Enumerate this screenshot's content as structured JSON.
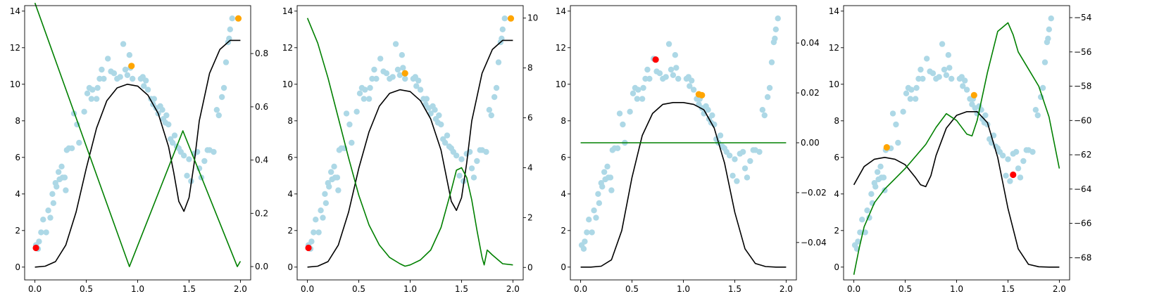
{
  "figure": {
    "background": "#ffffff",
    "colors": {
      "scatter": "#add8e6",
      "curve": "#000000",
      "right": "#008000",
      "orange": "#ffa500",
      "red": "#ff0000"
    }
  },
  "chart_data": [
    {
      "type": "scatter",
      "panel": 1,
      "xlim": [
        -0.1,
        2.1
      ],
      "ylim": [
        -0.7,
        14.3
      ],
      "xticks": [
        0.0,
        0.5,
        1.0,
        1.5,
        2.0
      ],
      "xtick_labels": [
        "0.0",
        "0.5",
        "1.0",
        "1.5",
        "2.0"
      ],
      "yticks": [
        0,
        2,
        4,
        6,
        8,
        10,
        12,
        14
      ],
      "ytick_labels": [
        "0",
        "2",
        "4",
        "6",
        "8",
        "10",
        "12",
        "14"
      ],
      "y2lim": [
        -0.05,
        0.98
      ],
      "y2ticks": [
        0.0,
        0.2,
        0.4,
        0.6,
        0.8
      ],
      "y2tick_labels": [
        "0.0",
        "0.2",
        "0.4",
        "0.6",
        "0.8"
      ],
      "curve": {
        "x": [
          0.0,
          0.1,
          0.2,
          0.3,
          0.4,
          0.5,
          0.6,
          0.7,
          0.8,
          0.9,
          1.0,
          1.1,
          1.2,
          1.3,
          1.35,
          1.4,
          1.45,
          1.5,
          1.55,
          1.6,
          1.7,
          1.8,
          1.9,
          2.0
        ],
        "y": [
          0.0,
          0.05,
          0.3,
          1.2,
          3.0,
          5.4,
          7.6,
          9.1,
          9.8,
          10.0,
          9.9,
          9.4,
          8.4,
          6.6,
          5.2,
          3.6,
          3.05,
          3.8,
          5.7,
          8.0,
          10.6,
          11.9,
          12.4,
          12.4
        ]
      },
      "right_series": {
        "x": [
          0.0,
          0.92,
          1.44,
          1.97,
          2.0
        ],
        "y": [
          0.99,
          0.0,
          0.51,
          0.0,
          0.02
        ]
      },
      "highlight_orange": [
        {
          "x": 0.94,
          "y": 11.0
        },
        {
          "x": 1.98,
          "y": 13.6
        }
      ],
      "highlight_red": [
        {
          "x": 0.01,
          "y": 1.05
        }
      ]
    },
    {
      "type": "scatter",
      "panel": 2,
      "xlim": [
        -0.1,
        2.1
      ],
      "ylim": [
        -0.7,
        14.3
      ],
      "xticks": [
        0.0,
        0.5,
        1.0,
        1.5,
        2.0
      ],
      "xtick_labels": [
        "0.0",
        "0.5",
        "1.0",
        "1.5",
        "2.0"
      ],
      "yticks": [
        0,
        2,
        4,
        6,
        8,
        10,
        12,
        14
      ],
      "ytick_labels": [
        "0",
        "2",
        "4",
        "6",
        "8",
        "10",
        "12",
        "14"
      ],
      "y2lim": [
        -0.5,
        10.5
      ],
      "y2ticks": [
        0,
        2,
        4,
        6,
        8,
        10
      ],
      "y2tick_labels": [
        "0",
        "2",
        "4",
        "6",
        "8",
        "10"
      ],
      "curve": {
        "x": [
          0.0,
          0.1,
          0.2,
          0.3,
          0.4,
          0.5,
          0.6,
          0.7,
          0.8,
          0.9,
          1.0,
          1.1,
          1.2,
          1.3,
          1.35,
          1.4,
          1.45,
          1.5,
          1.55,
          1.6,
          1.7,
          1.8,
          1.9,
          2.0
        ],
        "y": [
          0.0,
          0.05,
          0.3,
          1.2,
          3.0,
          5.4,
          7.4,
          8.8,
          9.5,
          9.7,
          9.6,
          9.1,
          8.1,
          6.4,
          5.0,
          3.6,
          3.1,
          3.8,
          5.7,
          8.0,
          10.6,
          11.9,
          12.4,
          12.4
        ]
      },
      "right_series": {
        "x": [
          0.0,
          0.1,
          0.2,
          0.3,
          0.4,
          0.5,
          0.6,
          0.7,
          0.8,
          0.9,
          0.95,
          1.0,
          1.1,
          1.2,
          1.3,
          1.4,
          1.45,
          1.5,
          1.55,
          1.6,
          1.65,
          1.7,
          1.72,
          1.75,
          1.8,
          1.9,
          2.0
        ],
        "y": [
          10.0,
          9.0,
          7.6,
          6.0,
          4.4,
          2.9,
          1.7,
          0.9,
          0.4,
          0.15,
          0.05,
          0.1,
          0.3,
          0.7,
          1.6,
          3.1,
          3.9,
          4.0,
          3.6,
          2.7,
          1.5,
          0.4,
          0.1,
          0.7,
          0.5,
          0.15,
          0.1
        ]
      },
      "highlight_orange": [
        {
          "x": 0.95,
          "y": 10.6
        },
        {
          "x": 1.98,
          "y": 13.6
        }
      ],
      "highlight_red": [
        {
          "x": 0.01,
          "y": 1.05
        }
      ]
    },
    {
      "type": "scatter",
      "panel": 3,
      "xlim": [
        -0.1,
        2.1
      ],
      "ylim": [
        -0.7,
        14.3
      ],
      "xticks": [
        0.0,
        0.5,
        1.0,
        1.5,
        2.0
      ],
      "xtick_labels": [
        "0.0",
        "0.5",
        "1.0",
        "1.5",
        "2.0"
      ],
      "yticks": [
        0,
        2,
        4,
        6,
        8,
        10,
        12,
        14
      ],
      "ytick_labels": [
        "0",
        "2",
        "4",
        "6",
        "8",
        "10",
        "12",
        "14"
      ],
      "y2lim": [
        -0.055,
        0.055
      ],
      "y2ticks": [
        -0.04,
        -0.02,
        0.0,
        0.02,
        0.04
      ],
      "y2tick_labels": [
        "−0.04",
        "−0.02",
        "0.00",
        "0.02",
        "0.04"
      ],
      "curve": {
        "x": [
          0.0,
          0.1,
          0.2,
          0.3,
          0.4,
          0.5,
          0.6,
          0.7,
          0.8,
          0.9,
          1.0,
          1.1,
          1.2,
          1.3,
          1.4,
          1.5,
          1.6,
          1.7,
          1.8,
          1.9,
          2.0
        ],
        "y": [
          0.0,
          0.0,
          0.05,
          0.4,
          2.0,
          4.9,
          7.2,
          8.4,
          8.9,
          9.0,
          9.0,
          8.9,
          8.6,
          7.6,
          5.7,
          3.0,
          1.0,
          0.2,
          0.03,
          0.0,
          0.0
        ]
      },
      "right_series": {
        "x": [
          0.0,
          2.0
        ],
        "y": [
          0.0,
          0.0
        ]
      },
      "highlight_orange": [
        {
          "x": 1.15,
          "y": 9.45
        },
        {
          "x": 1.18,
          "y": 9.4
        }
      ],
      "highlight_red": [
        {
          "x": 0.73,
          "y": 11.35
        }
      ]
    },
    {
      "type": "scatter",
      "panel": 4,
      "xlim": [
        -0.1,
        2.1
      ],
      "ylim": [
        -0.7,
        14.3
      ],
      "xticks": [
        0.0,
        0.5,
        1.0,
        1.5,
        2.0
      ],
      "xtick_labels": [
        "0.0",
        "0.5",
        "1.0",
        "1.5",
        "2.0"
      ],
      "yticks": [
        0,
        2,
        4,
        6,
        8,
        10,
        12,
        14
      ],
      "ytick_labels": [
        "0",
        "2",
        "4",
        "6",
        "8",
        "10",
        "12",
        "14"
      ],
      "y2lim": [
        -69.3,
        -53.3
      ],
      "y2ticks": [
        -68,
        -66,
        -64,
        -62,
        -60,
        -58,
        -56,
        -54
      ],
      "y2tick_labels": [
        "−68",
        "−66",
        "−64",
        "−62",
        "−60",
        "−58",
        "−56",
        "−54"
      ],
      "curve": {
        "x": [
          0.0,
          0.1,
          0.2,
          0.3,
          0.4,
          0.5,
          0.6,
          0.65,
          0.7,
          0.75,
          0.8,
          0.9,
          1.0,
          1.1,
          1.2,
          1.3,
          1.4,
          1.5,
          1.6,
          1.7,
          1.8,
          1.9,
          2.0
        ],
        "y": [
          4.5,
          5.5,
          5.9,
          6.0,
          5.9,
          5.6,
          4.9,
          4.5,
          4.4,
          5.0,
          6.1,
          7.6,
          8.3,
          8.5,
          8.5,
          7.9,
          6.0,
          3.2,
          1.0,
          0.15,
          0.02,
          0.0,
          0.0
        ]
      },
      "right_series": {
        "x": [
          0.0,
          0.05,
          0.1,
          0.2,
          0.3,
          0.4,
          0.5,
          0.6,
          0.7,
          0.8,
          0.9,
          1.0,
          1.1,
          1.15,
          1.2,
          1.3,
          1.4,
          1.5,
          1.55,
          1.6,
          1.7,
          1.8,
          1.9,
          2.0
        ],
        "y": [
          -69.0,
          -67.5,
          -66.2,
          -64.8,
          -64.0,
          -63.4,
          -62.8,
          -62.1,
          -61.4,
          -60.4,
          -59.6,
          -60.0,
          -60.8,
          -60.9,
          -60.0,
          -57.2,
          -54.8,
          -54.3,
          -55.0,
          -56.0,
          -57.0,
          -58.0,
          -59.8,
          -62.8
        ]
      },
      "highlight_orange": [
        {
          "x": 0.32,
          "y": 6.55
        },
        {
          "x": 1.17,
          "y": 9.4
        }
      ],
      "highlight_red": [
        {
          "x": 1.55,
          "y": 5.05
        }
      ]
    }
  ],
  "scatter_points": [
    [
      0.01,
      1.2
    ],
    [
      0.03,
      1.0
    ],
    [
      0.04,
      1.4
    ],
    [
      0.06,
      1.9
    ],
    [
      0.08,
      2.6
    ],
    [
      0.11,
      1.9
    ],
    [
      0.13,
      3.1
    ],
    [
      0.15,
      2.7
    ],
    [
      0.17,
      4.0
    ],
    [
      0.18,
      3.5
    ],
    [
      0.2,
      4.6
    ],
    [
      0.21,
      4.4
    ],
    [
      0.23,
      5.2
    ],
    [
      0.24,
      4.8
    ],
    [
      0.26,
      5.5
    ],
    [
      0.27,
      4.9
    ],
    [
      0.29,
      4.9
    ],
    [
      0.3,
      4.2
    ],
    [
      0.31,
      6.4
    ],
    [
      0.33,
      6.5
    ],
    [
      0.36,
      6.5
    ],
    [
      0.38,
      8.4
    ],
    [
      0.41,
      7.8
    ],
    [
      0.43,
      6.8
    ],
    [
      0.48,
      8.5
    ],
    [
      0.51,
      9.5
    ],
    [
      0.53,
      9.8
    ],
    [
      0.55,
      9.2
    ],
    [
      0.56,
      9.7
    ],
    [
      0.6,
      9.2
    ],
    [
      0.61,
      9.8
    ],
    [
      0.63,
      10.3
    ],
    [
      0.65,
      10.8
    ],
    [
      0.67,
      10.3
    ],
    [
      0.71,
      11.4
    ],
    [
      0.74,
      10.7
    ],
    [
      0.77,
      10.6
    ],
    [
      0.8,
      10.3
    ],
    [
      0.83,
      10.4
    ],
    [
      0.86,
      12.2
    ],
    [
      0.88,
      10.8
    ],
    [
      0.9,
      10.5
    ],
    [
      0.92,
      11.6
    ],
    [
      0.93,
      10.9
    ],
    [
      0.95,
      10.3
    ],
    [
      1.03,
      10.3
    ],
    [
      1.05,
      10.4
    ],
    [
      1.06,
      9.9
    ],
    [
      1.08,
      10.2
    ],
    [
      1.1,
      9.7
    ],
    [
      1.13,
      9.2
    ],
    [
      1.15,
      8.9
    ],
    [
      1.16,
      9.2
    ],
    [
      1.18,
      8.7
    ],
    [
      1.2,
      8.4
    ],
    [
      1.22,
      8.8
    ],
    [
      1.24,
      8.6
    ],
    [
      1.25,
      8.1
    ],
    [
      1.27,
      7.9
    ],
    [
      1.28,
      8.3
    ],
    [
      1.3,
      7.8
    ],
    [
      1.32,
      7.0
    ],
    [
      1.34,
      6.8
    ],
    [
      1.36,
      7.2
    ],
    [
      1.38,
      6.6
    ],
    [
      1.4,
      6.5
    ],
    [
      1.42,
      6.3
    ],
    [
      1.45,
      6.1
    ],
    [
      1.48,
      5.0
    ],
    [
      1.5,
      5.9
    ],
    [
      1.52,
      4.7
    ],
    [
      1.55,
      6.2
    ],
    [
      1.58,
      6.3
    ],
    [
      1.6,
      5.4
    ],
    [
      1.62,
      4.9
    ],
    [
      1.65,
      5.8
    ],
    [
      1.68,
      6.4
    ],
    [
      1.7,
      6.4
    ],
    [
      1.74,
      6.3
    ],
    [
      1.77,
      8.6
    ],
    [
      1.79,
      8.3
    ],
    [
      1.82,
      9.3
    ],
    [
      1.84,
      9.8
    ],
    [
      1.86,
      11.2
    ],
    [
      1.88,
      12.3
    ],
    [
      1.89,
      12.5
    ],
    [
      1.9,
      13.0
    ],
    [
      1.92,
      13.6
    ]
  ]
}
